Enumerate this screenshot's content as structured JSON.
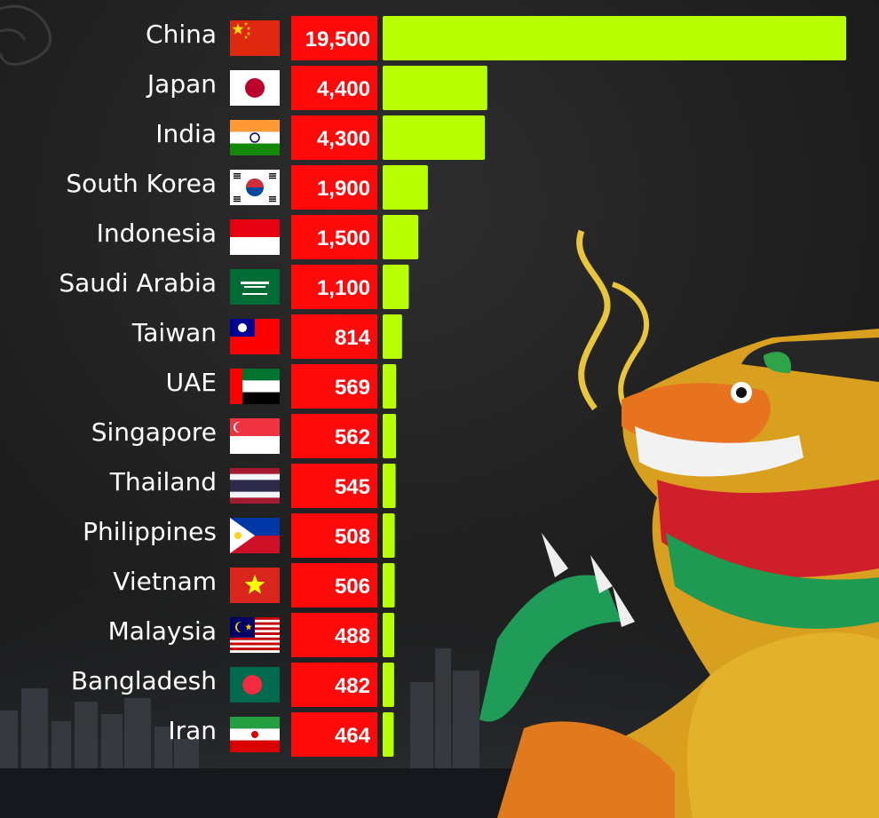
{
  "chart_data": {
    "type": "bar",
    "orientation": "horizontal",
    "categories": [
      "China",
      "Japan",
      "India",
      "South Korea",
      "Indonesia",
      "Saudi Arabia",
      "Taiwan",
      "UAE",
      "Singapore",
      "Thailand",
      "Philippines",
      "Vietnam",
      "Malaysia",
      "Bangladesh",
      "Iran"
    ],
    "values": [
      19500,
      4400,
      4300,
      1900,
      1500,
      1100,
      814,
      569,
      562,
      545,
      508,
      506,
      488,
      482,
      464
    ],
    "value_labels": [
      "19,500",
      "4,400",
      "4,300",
      "1,900",
      "1,500",
      "1,100",
      "814",
      "569",
      "562",
      "545",
      "508",
      "506",
      "488",
      "482",
      "464"
    ],
    "flags": [
      "china-flag",
      "japan-flag",
      "india-flag",
      "south-korea-flag",
      "indonesia-flag",
      "saudi-arabia-flag",
      "taiwan-flag",
      "uae-flag",
      "singapore-flag",
      "thailand-flag",
      "philippines-flag",
      "vietnam-flag",
      "malaysia-flag",
      "bangladesh-flag",
      "iran-flag"
    ],
    "xlim": [
      0,
      19500
    ],
    "grid": false,
    "legend": "none",
    "title": "",
    "xlabel": "",
    "ylabel": ""
  },
  "colors": {
    "bar": "#b8ff00",
    "value_box": "#ff0a0a",
    "text": "#ffffff",
    "background": "#1b1b1b"
  },
  "decorations": {
    "background_image": "dragon-statue-over-city-skyline"
  }
}
